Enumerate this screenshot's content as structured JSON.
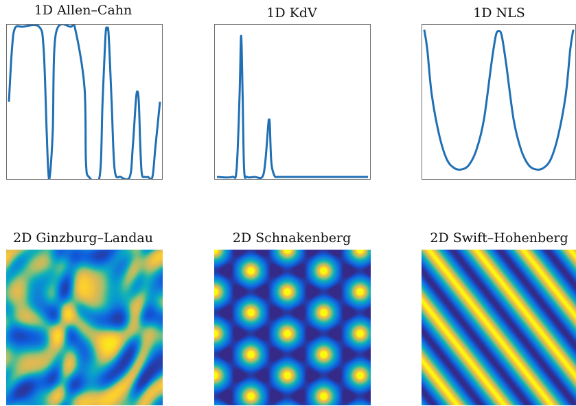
{
  "chart_data": [
    {
      "type": "line",
      "title": "1D Allen–Cahn",
      "x": [
        0.0,
        0.02,
        0.04,
        0.09,
        0.2,
        0.23,
        0.25,
        0.26,
        0.27,
        0.29,
        0.31,
        0.41,
        0.44,
        0.5,
        0.51,
        0.53,
        0.6,
        0.62,
        0.64,
        0.65,
        0.66,
        0.68,
        0.7,
        0.74,
        0.8,
        0.82,
        0.84,
        0.85,
        0.86,
        0.87,
        0.88,
        0.9,
        0.92,
        0.95,
        0.97,
        1.0
      ],
      "values": [
        0.5,
        0.85,
        0.99,
        1.0,
        1.0,
        0.85,
        0.3,
        0.05,
        0.0,
        0.3,
        0.95,
        1.0,
        0.98,
        0.6,
        0.1,
        0.0,
        0.0,
        0.5,
        0.95,
        0.98,
        0.95,
        0.5,
        0.05,
        0.0,
        0.0,
        0.2,
        0.5,
        0.57,
        0.5,
        0.2,
        0.02,
        0.0,
        0.0,
        0.0,
        0.2,
        0.5
      ],
      "ylim": [
        0,
        1
      ]
    },
    {
      "type": "line",
      "title": "1D KdV",
      "x": [
        0.0,
        0.1,
        0.13,
        0.15,
        0.16,
        0.17,
        0.18,
        0.2,
        0.25,
        0.3,
        0.32,
        0.34,
        0.345,
        0.35,
        0.36,
        0.38,
        0.4,
        0.45,
        1.0
      ],
      "values": [
        0.0,
        0.0,
        0.05,
        0.55,
        0.94,
        0.55,
        0.05,
        0.0,
        0.0,
        0.0,
        0.1,
        0.35,
        0.38,
        0.35,
        0.1,
        0.01,
        0.0,
        0.0,
        0.0
      ],
      "ylim": [
        0,
        1
      ]
    },
    {
      "type": "line",
      "title": "1D NLS",
      "x": [
        0.0,
        0.02,
        0.05,
        0.1,
        0.15,
        0.2,
        0.25,
        0.3,
        0.35,
        0.4,
        0.45,
        0.48,
        0.5,
        0.52,
        0.55,
        0.6,
        0.65,
        0.7,
        0.75,
        0.8,
        0.85,
        0.9,
        0.95,
        0.98,
        1.0
      ],
      "values": [
        0.98,
        0.85,
        0.55,
        0.28,
        0.12,
        0.06,
        0.05,
        0.08,
        0.18,
        0.38,
        0.75,
        0.94,
        0.97,
        0.94,
        0.75,
        0.38,
        0.18,
        0.08,
        0.05,
        0.06,
        0.12,
        0.28,
        0.55,
        0.85,
        0.98
      ],
      "ylim": [
        0,
        1
      ]
    },
    {
      "type": "heatmap",
      "title": "2D Ginzburg–Landau",
      "colormap": "parula"
    },
    {
      "type": "heatmap",
      "title": "2D Schnakenberg",
      "colormap": "parula"
    },
    {
      "type": "heatmap",
      "title": "2D Swift–Hohenberg",
      "colormap": "parula"
    }
  ],
  "colors": {
    "line": "#1f6fb4",
    "frame": "#6b6b6b"
  }
}
